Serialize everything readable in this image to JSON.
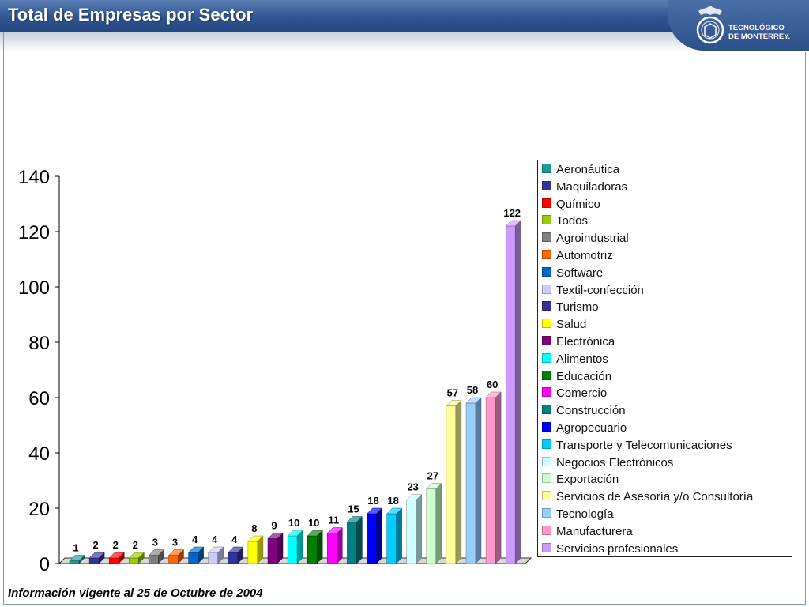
{
  "header": {
    "title": "Total de Empresas por Sector",
    "logo_line1": "TECNOLÓGICO",
    "logo_line2": "DE MONTERREY."
  },
  "footer": {
    "note": "Información vigente al 25 de Octubre de 2004"
  },
  "chart_data": {
    "type": "bar",
    "ylim": [
      0,
      140
    ],
    "yticks": [
      0,
      20,
      40,
      60,
      80,
      100,
      120,
      140
    ],
    "legend_position": "right",
    "grid": false,
    "categories": [
      "Aeronáutica",
      "Maquiladoras",
      "Químico",
      "Todos",
      "Agroindustrial",
      "Automotriz",
      "Software",
      "Textil-confección",
      "Turismo",
      "Salud",
      "Electrónica",
      "Alimentos",
      "Educación",
      "Comercio",
      "Construcción",
      "Agropecuario",
      "Transporte y Telecomunicaciones",
      "Negocios Electrónicos",
      "Exportación",
      "Servicios de Asesoría y/o Consultoría",
      "Tecnología",
      "Manufacturera",
      "Servicios profesionales"
    ],
    "values": [
      1,
      2,
      2,
      2,
      3,
      3,
      4,
      4,
      4,
      8,
      9,
      10,
      10,
      11,
      15,
      18,
      18,
      23,
      27,
      57,
      58,
      60,
      122
    ],
    "colors": [
      "#1a9a9a",
      "#333399",
      "#ff0000",
      "#99cc00",
      "#808080",
      "#ff6600",
      "#0066cc",
      "#ccccff",
      "#333399",
      "#ffff00",
      "#800080",
      "#00ffff",
      "#008000",
      "#ff00ff",
      "#008080",
      "#0000ff",
      "#00ccff",
      "#ccffff",
      "#ccffcc",
      "#ffff99",
      "#99ccff",
      "#ff99cc",
      "#cc99ff"
    ]
  }
}
